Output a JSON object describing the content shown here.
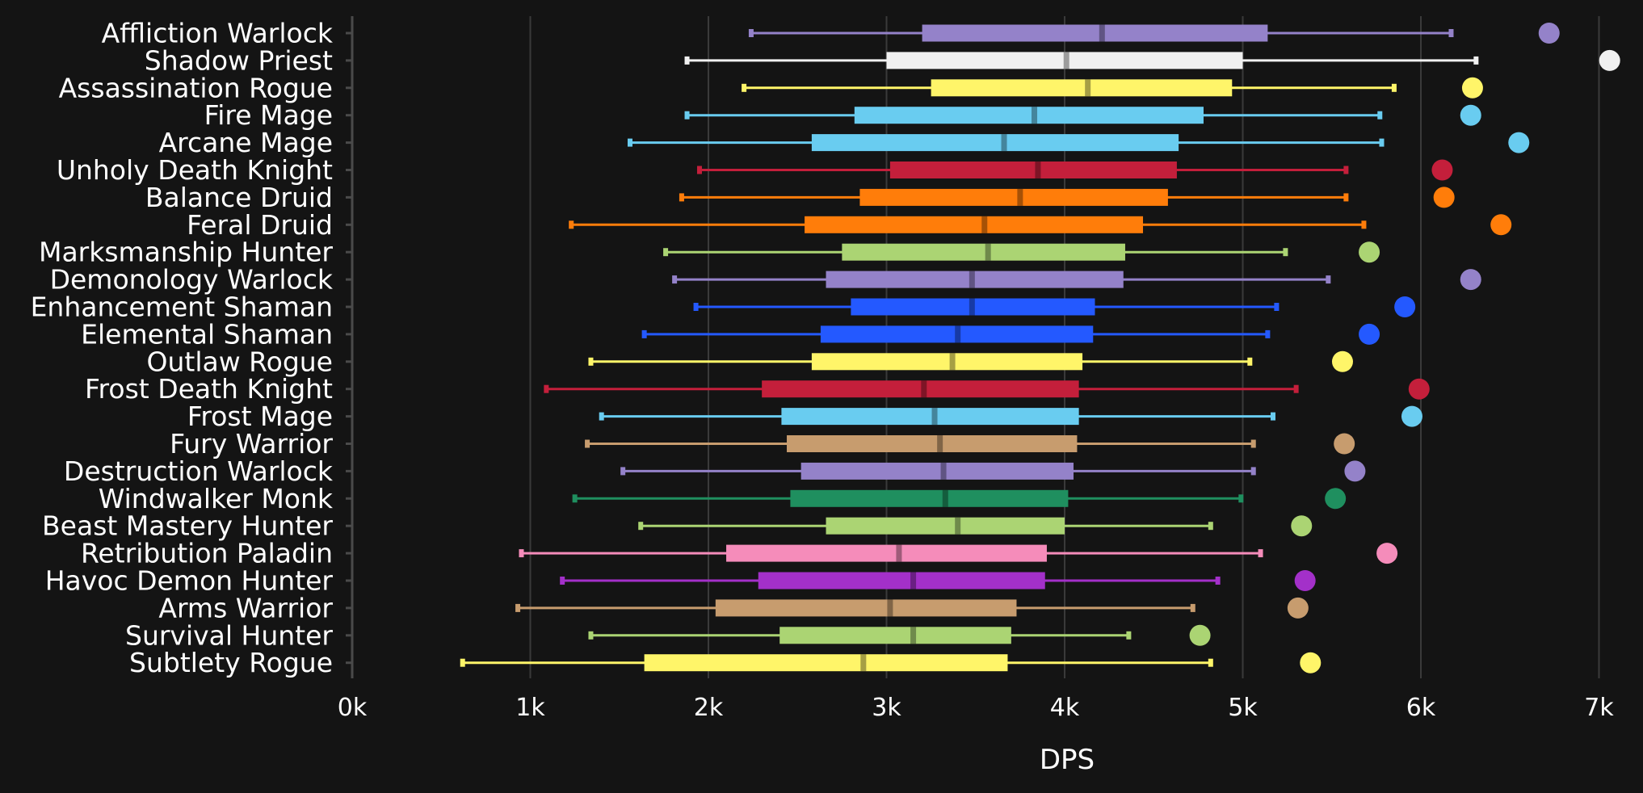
{
  "chart_data": {
    "type": "box",
    "xlabel": "DPS",
    "x_ticks": [
      "0k",
      "1k",
      "2k",
      "3k",
      "4k",
      "5k",
      "6k",
      "7k"
    ],
    "xlim": [
      0,
      7200
    ],
    "grid": "vertical",
    "legend": "none",
    "series": [
      {
        "name": "Affliction Warlock",
        "color": "#9482c9",
        "min": 2240,
        "q1": 3200,
        "median": 4210,
        "q3": 5140,
        "max": 6170,
        "outlier": 6720
      },
      {
        "name": "Shadow Priest",
        "color": "#f0f0f0",
        "min": 1880,
        "q1": 3000,
        "median": 4010,
        "q3": 5000,
        "max": 6310,
        "outlier": 7060
      },
      {
        "name": "Assassination Rogue",
        "color": "#fff569",
        "min": 2200,
        "q1": 3250,
        "median": 4130,
        "q3": 4940,
        "max": 5850,
        "outlier": 6290
      },
      {
        "name": "Fire Mage",
        "color": "#69ccf0",
        "min": 1880,
        "q1": 2820,
        "median": 3830,
        "q3": 4780,
        "max": 5770,
        "outlier": 6280
      },
      {
        "name": "Arcane Mage",
        "color": "#69ccf0",
        "min": 1560,
        "q1": 2580,
        "median": 3660,
        "q3": 4640,
        "max": 5780,
        "outlier": 6550
      },
      {
        "name": "Unholy Death Knight",
        "color": "#c41f3b",
        "min": 1950,
        "q1": 3020,
        "median": 3850,
        "q3": 4630,
        "max": 5580,
        "outlier": 6120
      },
      {
        "name": "Balance Druid",
        "color": "#ff7d0a",
        "min": 1850,
        "q1": 2850,
        "median": 3750,
        "q3": 4580,
        "max": 5580,
        "outlier": 6130
      },
      {
        "name": "Feral Druid",
        "color": "#ff7d0a",
        "min": 1230,
        "q1": 2540,
        "median": 3550,
        "q3": 4440,
        "max": 5680,
        "outlier": 6450
      },
      {
        "name": "Marksmanship Hunter",
        "color": "#abd473",
        "min": 1760,
        "q1": 2750,
        "median": 3570,
        "q3": 4340,
        "max": 5240,
        "outlier": 5710
      },
      {
        "name": "Demonology Warlock",
        "color": "#9482c9",
        "min": 1810,
        "q1": 2660,
        "median": 3480,
        "q3": 4330,
        "max": 5480,
        "outlier": 6280
      },
      {
        "name": "Enhancement Shaman",
        "color": "#2459ff",
        "min": 1930,
        "q1": 2800,
        "median": 3480,
        "q3": 4170,
        "max": 5190,
        "outlier": 5910
      },
      {
        "name": "Elemental Shaman",
        "color": "#2459ff",
        "min": 1640,
        "q1": 2630,
        "median": 3400,
        "q3": 4160,
        "max": 5140,
        "outlier": 5710
      },
      {
        "name": "Outlaw Rogue",
        "color": "#fff569",
        "min": 1340,
        "q1": 2580,
        "median": 3370,
        "q3": 4100,
        "max": 5040,
        "outlier": 5560
      },
      {
        "name": "Frost Death Knight",
        "color": "#c41f3b",
        "min": 1090,
        "q1": 2300,
        "median": 3210,
        "q3": 4080,
        "max": 5300,
        "outlier": 5990
      },
      {
        "name": "Frost Mage",
        "color": "#69ccf0",
        "min": 1400,
        "q1": 2410,
        "median": 3270,
        "q3": 4080,
        "max": 5170,
        "outlier": 5950
      },
      {
        "name": "Fury Warrior",
        "color": "#c79c6e",
        "min": 1320,
        "q1": 2440,
        "median": 3300,
        "q3": 4070,
        "max": 5060,
        "outlier": 5570
      },
      {
        "name": "Destruction Warlock",
        "color": "#9482c9",
        "min": 1520,
        "q1": 2520,
        "median": 3320,
        "q3": 4050,
        "max": 5060,
        "outlier": 5630
      },
      {
        "name": "Windwalker Monk",
        "color": "#1f8f5f",
        "min": 1250,
        "q1": 2460,
        "median": 3330,
        "q3": 4020,
        "max": 4990,
        "outlier": 5520
      },
      {
        "name": "Beast Mastery Hunter",
        "color": "#abd473",
        "min": 1620,
        "q1": 2660,
        "median": 3400,
        "q3": 4000,
        "max": 4820,
        "outlier": 5330
      },
      {
        "name": "Retribution Paladin",
        "color": "#f58cba",
        "min": 950,
        "q1": 2100,
        "median": 3070,
        "q3": 3900,
        "max": 5100,
        "outlier": 5810
      },
      {
        "name": "Havoc Demon Hunter",
        "color": "#a330c9",
        "min": 1180,
        "q1": 2280,
        "median": 3150,
        "q3": 3890,
        "max": 4860,
        "outlier": 5350
      },
      {
        "name": "Arms Warrior",
        "color": "#c79c6e",
        "min": 930,
        "q1": 2040,
        "median": 3020,
        "q3": 3730,
        "max": 4720,
        "outlier": 5310
      },
      {
        "name": "Survival Hunter",
        "color": "#abd473",
        "min": 1340,
        "q1": 2400,
        "median": 3150,
        "q3": 3700,
        "max": 4360,
        "outlier": 4760
      },
      {
        "name": "Subtlety Rogue",
        "color": "#fff569",
        "min": 620,
        "q1": 1640,
        "median": 2870,
        "q3": 3680,
        "max": 4820,
        "outlier": 5380
      }
    ]
  }
}
